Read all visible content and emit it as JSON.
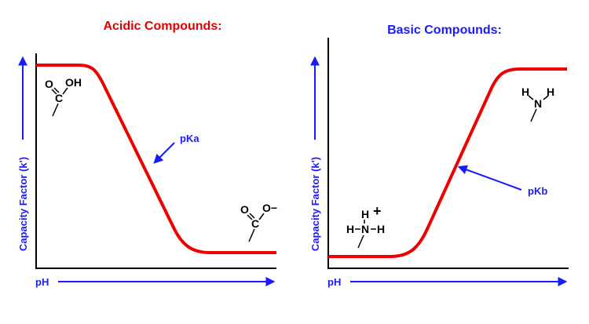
{
  "panels": [
    {
      "title": "Acidic Compounds:",
      "x_label": "pH",
      "y_label": "Capacity Factor (k')",
      "annotation": "pKa",
      "structure_top": [
        "O",
        "OH",
        "C"
      ],
      "structure_bottom": [
        "O",
        "O−",
        "C"
      ]
    },
    {
      "title": "Basic Compounds:",
      "x_label": "pH",
      "y_label": "Capacity Factor (k')",
      "annotation": "pKb",
      "structure_top": [
        "H",
        "H",
        "N"
      ],
      "structure_bottom": [
        "H",
        "+",
        "H",
        "N",
        "H"
      ]
    }
  ]
}
